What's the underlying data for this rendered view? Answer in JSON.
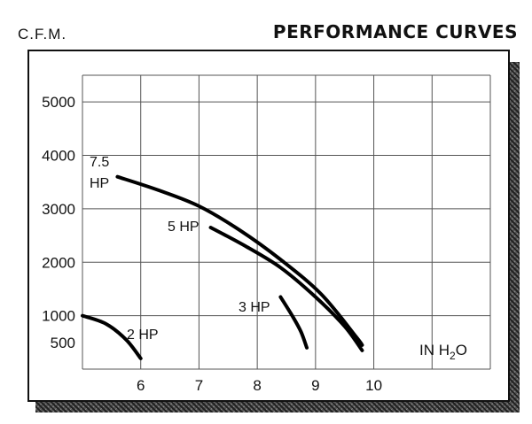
{
  "header": {
    "ylabel": "C.F.M.",
    "title": "PERFORMANCE CURVES"
  },
  "chart_data": {
    "type": "line",
    "title": "PERFORMANCE CURVES",
    "ylabel": "C.F.M.",
    "xlabel_parts": {
      "prefix": "IN H",
      "sub": "2",
      "suffix": "O"
    },
    "xlim": [
      5,
      12
    ],
    "ylim": [
      0,
      5500
    ],
    "x_ticks": [
      6,
      7,
      8,
      9,
      10
    ],
    "y_ticks": [
      500,
      1000,
      2000,
      3000,
      4000,
      5000
    ],
    "grid": true,
    "series": [
      {
        "name": "7.5 HP",
        "label_lines": [
          "7.5",
          "HP"
        ],
        "color": "#000000",
        "points": [
          [
            5.6,
            3600
          ],
          [
            6.3,
            3350
          ],
          [
            7.0,
            3050
          ],
          [
            7.7,
            2600
          ],
          [
            8.4,
            2050
          ],
          [
            9.1,
            1400
          ],
          [
            9.7,
            600
          ],
          [
            9.8,
            450
          ]
        ]
      },
      {
        "name": "5 HP",
        "label_lines": [
          "5 HP"
        ],
        "color": "#000000",
        "points": [
          [
            7.2,
            2650
          ],
          [
            7.8,
            2300
          ],
          [
            8.4,
            1900
          ],
          [
            9.0,
            1350
          ],
          [
            9.5,
            800
          ],
          [
            9.8,
            350
          ]
        ]
      },
      {
        "name": "3 HP",
        "label_lines": [
          "3 HP"
        ],
        "color": "#000000",
        "points": [
          [
            8.4,
            1350
          ],
          [
            8.6,
            1000
          ],
          [
            8.75,
            700
          ],
          [
            8.85,
            400
          ]
        ]
      },
      {
        "name": "2 HP",
        "label_lines": [
          "2 HP"
        ],
        "color": "#000000",
        "points": [
          [
            5.0,
            1000
          ],
          [
            5.4,
            850
          ],
          [
            5.75,
            550
          ],
          [
            6.0,
            200
          ]
        ]
      }
    ]
  }
}
